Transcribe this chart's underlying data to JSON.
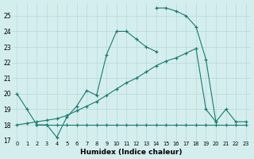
{
  "xlabel": "Humidex (Indice chaleur)",
  "bg_color": "#d4eeee",
  "grid_color": "#b8d8d8",
  "line_color": "#1a7a6e",
  "xlim": [
    -0.5,
    23.5
  ],
  "ylim": [
    17,
    25.8
  ],
  "yticks": [
    17,
    18,
    19,
    20,
    21,
    22,
    23,
    24,
    25
  ],
  "xticks": [
    0,
    1,
    2,
    3,
    4,
    5,
    6,
    7,
    8,
    9,
    10,
    11,
    12,
    13,
    14,
    15,
    16,
    17,
    18,
    19,
    20,
    21,
    22,
    23
  ],
  "series1_x": [
    0,
    1,
    2,
    3,
    4,
    5,
    6,
    7,
    8,
    9,
    10,
    11,
    12,
    13,
    14
  ],
  "series1_y": [
    20,
    19,
    18,
    18,
    17.2,
    18.5,
    19.2,
    20.2,
    19.9,
    22.5,
    24.0,
    24.0,
    23.5,
    23.0,
    22.7
  ],
  "series2_x": [
    14,
    15,
    16,
    17,
    18,
    19,
    20,
    21,
    22,
    23
  ],
  "series2_y": [
    25.5,
    25.5,
    25.3,
    25.0,
    24.3,
    22.2,
    18.2,
    19.0,
    18.2,
    18.2
  ],
  "series3_x": [
    0,
    1,
    2,
    3,
    4,
    5,
    6,
    7,
    8,
    9,
    10,
    11,
    12,
    13,
    14,
    15,
    16,
    17,
    18,
    19,
    20
  ],
  "series3_y": [
    18.0,
    18.1,
    18.2,
    18.3,
    18.4,
    18.6,
    18.9,
    19.2,
    19.5,
    19.9,
    20.3,
    20.7,
    21.0,
    21.4,
    21.8,
    22.1,
    22.3,
    22.6,
    22.9,
    19.0,
    18.2
  ],
  "series4_x": [
    2,
    3,
    4,
    5,
    6,
    7,
    8,
    9,
    10,
    11,
    12,
    13,
    14,
    15,
    16,
    17,
    18,
    19,
    20,
    21,
    22,
    23
  ],
  "series4_y": [
    18.0,
    18.0,
    18.0,
    18.0,
    18.0,
    18.0,
    18.0,
    18.0,
    18.0,
    18.0,
    18.0,
    18.0,
    18.0,
    18.0,
    18.0,
    18.0,
    18.0,
    18.0,
    18.0,
    18.0,
    18.0,
    18.0
  ]
}
